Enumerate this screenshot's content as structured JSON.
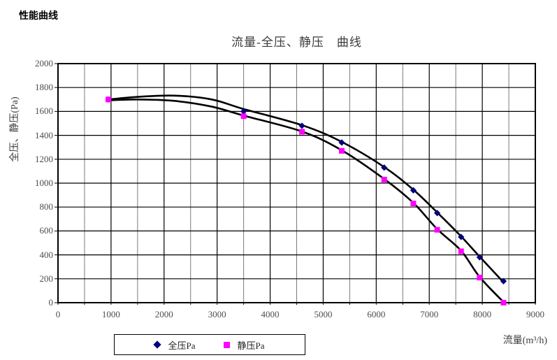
{
  "header": {
    "title": "性能曲线"
  },
  "chart": {
    "title": "流量-全压、静压　曲线",
    "y_axis_title": "全压、静压(Pa)",
    "x_axis_title": "流量(m³/h)",
    "legend": [
      {
        "label": "全压Pa",
        "marker": "diamond",
        "color": "#000080"
      },
      {
        "label": "静压Pa",
        "marker": "square",
        "color": "#FF00FF"
      }
    ]
  },
  "chart_data": {
    "type": "scatter",
    "title": "流量-全压、静压　曲线",
    "xlabel": "流量(m³/h)",
    "ylabel": "全压、静压(Pa)",
    "xlim": [
      0,
      9000
    ],
    "ylim": [
      0,
      2000
    ],
    "x_major_step": 1000,
    "x_minor_step": 500,
    "y_major_step": 200,
    "grid": "both",
    "legend_position": "bottom",
    "x": [
      950,
      3500,
      4600,
      5350,
      6150,
      6700,
      7150,
      7600,
      7950,
      8400
    ],
    "series": [
      {
        "name": "全压Pa",
        "marker": "diamond",
        "color": "#000080",
        "values": [
          1700,
          1600,
          1480,
          1340,
          1130,
          940,
          750,
          550,
          380,
          180
        ],
        "trend": [
          [
            950,
            1700
          ],
          [
            1500,
            1722
          ],
          [
            2200,
            1732
          ],
          [
            2900,
            1700
          ],
          [
            3500,
            1620
          ],
          [
            4600,
            1485
          ],
          [
            5350,
            1345
          ],
          [
            6150,
            1135
          ],
          [
            6700,
            945
          ],
          [
            7150,
            755
          ],
          [
            7600,
            555
          ],
          [
            7950,
            385
          ],
          [
            8370,
            185
          ]
        ]
      },
      {
        "name": "静压Pa",
        "marker": "square",
        "color": "#FF00FF",
        "values": [
          1700,
          1560,
          1430,
          1270,
          1030,
          830,
          610,
          430,
          210,
          0
        ],
        "trend": [
          [
            950,
            1693
          ],
          [
            1500,
            1700
          ],
          [
            2200,
            1688
          ],
          [
            2900,
            1640
          ],
          [
            3500,
            1565
          ],
          [
            4600,
            1432
          ],
          [
            5350,
            1275
          ],
          [
            6150,
            1035
          ],
          [
            6700,
            835
          ],
          [
            7150,
            615
          ],
          [
            7600,
            435
          ],
          [
            7950,
            215
          ],
          [
            8400,
            5
          ]
        ]
      }
    ],
    "trend_color": "#000000"
  }
}
